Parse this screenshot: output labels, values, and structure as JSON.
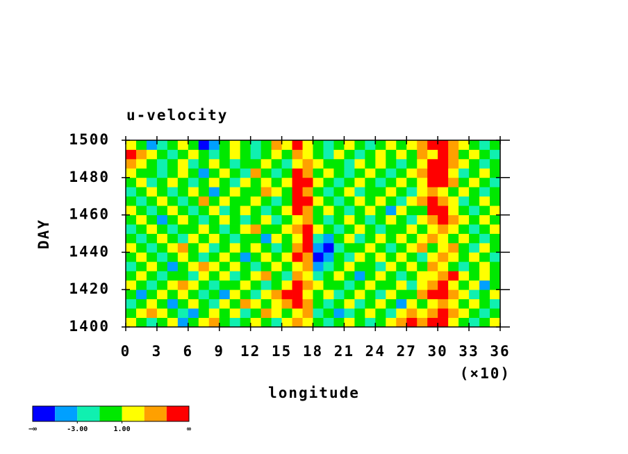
{
  "chart_data": {
    "type": "heatmap",
    "title": "u-velocity",
    "xlabel": "longitude",
    "ylabel": "DAY",
    "x_multiplier_label": "(×10)",
    "xlim": [
      0,
      36
    ],
    "xticks": [
      0,
      3,
      6,
      9,
      12,
      15,
      18,
      21,
      24,
      27,
      30,
      33,
      36
    ],
    "ylim": [
      1400,
      1500
    ],
    "yticks": [
      1400,
      1420,
      1440,
      1460,
      1480,
      1500
    ],
    "x": [
      0.5,
      1.5,
      2.5,
      3.5,
      4.5,
      5.5,
      6.5,
      7.5,
      8.5,
      9.5,
      10.5,
      11.5,
      12.5,
      13.5,
      14.5,
      15.5,
      16.5,
      17.5,
      18.5,
      19.5,
      20.5,
      21.5,
      22.5,
      23.5,
      24.5,
      25.5,
      26.5,
      27.5,
      28.5,
      29.5,
      30.5,
      31.5,
      32.5,
      33.5,
      34.5,
      35.5
    ],
    "y": [
      1402.5,
      1407.5,
      1412.5,
      1417.5,
      1422.5,
      1427.5,
      1432.5,
      1437.5,
      1442.5,
      1447.5,
      1452.5,
      1457.5,
      1462.5,
      1467.5,
      1472.5,
      1477.5,
      1482.5,
      1487.5,
      1492.5,
      1497.5
    ],
    "z": [
      [
        2,
        0,
        -2,
        0,
        2,
        -4,
        0,
        2,
        4,
        0,
        -2,
        0,
        2,
        0,
        -2,
        2,
        4,
        2,
        0,
        -2,
        0,
        2,
        0,
        -2,
        0,
        2,
        4,
        6,
        4,
        6,
        6,
        2,
        0,
        -2,
        0,
        2
      ],
      [
        0,
        2,
        4,
        2,
        0,
        -2,
        -4,
        0,
        2,
        0,
        2,
        -2,
        0,
        4,
        2,
        0,
        2,
        4,
        -2,
        0,
        -4,
        -2,
        0,
        2,
        0,
        -2,
        2,
        4,
        2,
        4,
        6,
        4,
        2,
        0,
        -2,
        0
      ],
      [
        -2,
        0,
        2,
        0,
        -4,
        0,
        2,
        0,
        -2,
        2,
        0,
        4,
        2,
        0,
        2,
        4,
        6,
        4,
        0,
        -2,
        0,
        2,
        -2,
        0,
        2,
        0,
        -4,
        2,
        0,
        2,
        4,
        2,
        0,
        2,
        0,
        -2
      ],
      [
        0,
        -4,
        0,
        2,
        0,
        2,
        0,
        -2,
        0,
        -4,
        2,
        0,
        -2,
        2,
        4,
        6,
        6,
        2,
        0,
        2,
        -2,
        0,
        2,
        0,
        -2,
        2,
        0,
        0,
        4,
        6,
        6,
        4,
        2,
        -2,
        0,
        2
      ],
      [
        2,
        0,
        -2,
        0,
        2,
        4,
        2,
        0,
        -2,
        0,
        0,
        2,
        0,
        -2,
        0,
        2,
        6,
        4,
        2,
        0,
        0,
        -2,
        0,
        2,
        0,
        0,
        2,
        -2,
        2,
        4,
        6,
        2,
        0,
        2,
        -4,
        0
      ],
      [
        0,
        2,
        0,
        -2,
        0,
        0,
        -2,
        2,
        0,
        2,
        -2,
        0,
        2,
        4,
        0,
        -2,
        4,
        2,
        -2,
        0,
        2,
        0,
        -4,
        0,
        2,
        0,
        -2,
        0,
        2,
        2,
        4,
        6,
        2,
        0,
        2,
        0
      ],
      [
        -2,
        0,
        2,
        0,
        -4,
        0,
        2,
        4,
        2,
        0,
        2,
        0,
        -2,
        0,
        2,
        0,
        2,
        4,
        -4,
        -2,
        0,
        2,
        0,
        0,
        -2,
        2,
        0,
        2,
        0,
        4,
        2,
        0,
        -2,
        0,
        2,
        0
      ],
      [
        0,
        2,
        0,
        -2,
        0,
        2,
        0,
        -2,
        0,
        2,
        0,
        -4,
        0,
        2,
        0,
        2,
        6,
        4,
        -6,
        -4,
        0,
        -2,
        2,
        0,
        2,
        0,
        2,
        0,
        -2,
        2,
        4,
        2,
        0,
        2,
        0,
        -2
      ],
      [
        2,
        0,
        -2,
        0,
        2,
        4,
        0,
        2,
        -2,
        0,
        2,
        0,
        2,
        0,
        -2,
        0,
        4,
        6,
        -4,
        -6,
        -2,
        0,
        0,
        2,
        0,
        -2,
        0,
        2,
        4,
        0,
        2,
        4,
        0,
        -2,
        2,
        0
      ],
      [
        0,
        -2,
        0,
        2,
        0,
        -2,
        2,
        0,
        2,
        0,
        -2,
        0,
        0,
        -4,
        2,
        0,
        2,
        6,
        -2,
        -4,
        0,
        2,
        -2,
        0,
        2,
        0,
        2,
        0,
        2,
        4,
        2,
        0,
        2,
        0,
        -2,
        0
      ],
      [
        -2,
        0,
        2,
        0,
        -2,
        0,
        0,
        2,
        0,
        -2,
        0,
        2,
        4,
        0,
        0,
        2,
        4,
        6,
        2,
        0,
        -2,
        0,
        2,
        0,
        -2,
        0,
        0,
        2,
        0,
        2,
        4,
        2,
        0,
        -2,
        0,
        2
      ],
      [
        0,
        2,
        0,
        -4,
        0,
        2,
        0,
        -2,
        0,
        2,
        0,
        -2,
        0,
        2,
        -2,
        0,
        2,
        4,
        0,
        -2,
        0,
        2,
        0,
        -2,
        0,
        2,
        0,
        -2,
        2,
        4,
        6,
        4,
        2,
        0,
        2,
        0
      ],
      [
        2,
        0,
        -2,
        0,
        2,
        0,
        -2,
        0,
        2,
        -2,
        0,
        2,
        0,
        -2,
        0,
        2,
        6,
        4,
        0,
        2,
        0,
        -2,
        0,
        2,
        0,
        -4,
        2,
        0,
        0,
        6,
        6,
        2,
        0,
        -2,
        0,
        2
      ],
      [
        0,
        -2,
        0,
        2,
        0,
        -2,
        0,
        4,
        0,
        2,
        0,
        0,
        2,
        0,
        -2,
        0,
        6,
        6,
        2,
        0,
        -2,
        0,
        2,
        0,
        2,
        0,
        -2,
        2,
        4,
        6,
        4,
        2,
        -2,
        0,
        2,
        0
      ],
      [
        -2,
        0,
        2,
        0,
        -2,
        0,
        2,
        0,
        -4,
        0,
        2,
        0,
        0,
        4,
        2,
        0,
        6,
        4,
        0,
        -2,
        0,
        2,
        -2,
        0,
        0,
        2,
        0,
        -2,
        2,
        4,
        2,
        0,
        2,
        0,
        -2,
        0
      ],
      [
        0,
        2,
        -2,
        0,
        2,
        0,
        -2,
        0,
        2,
        0,
        -2,
        2,
        0,
        2,
        0,
        2,
        6,
        6,
        2,
        0,
        -2,
        0,
        2,
        0,
        -2,
        0,
        2,
        0,
        2,
        6,
        6,
        4,
        0,
        2,
        0,
        -2
      ],
      [
        2,
        0,
        0,
        -2,
        0,
        2,
        0,
        -4,
        0,
        2,
        0,
        -2,
        4,
        0,
        -2,
        0,
        6,
        4,
        0,
        2,
        0,
        -2,
        0,
        2,
        0,
        -2,
        0,
        2,
        4,
        6,
        6,
        2,
        -2,
        0,
        2,
        0
      ],
      [
        4,
        2,
        0,
        -2,
        0,
        2,
        -2,
        0,
        2,
        0,
        -2,
        0,
        0,
        2,
        0,
        -2,
        2,
        4,
        2,
        0,
        0,
        -2,
        2,
        0,
        2,
        0,
        -2,
        0,
        2,
        6,
        6,
        4,
        2,
        0,
        -2,
        0
      ],
      [
        6,
        4,
        2,
        0,
        -2,
        0,
        2,
        0,
        -2,
        0,
        2,
        0,
        -2,
        0,
        2,
        0,
        4,
        2,
        0,
        -2,
        2,
        0,
        -2,
        0,
        2,
        0,
        2,
        0,
        4,
        2,
        6,
        4,
        0,
        2,
        0,
        -2
      ],
      [
        2,
        0,
        -4,
        -2,
        0,
        2,
        0,
        -6,
        -4,
        0,
        2,
        0,
        -2,
        0,
        4,
        2,
        6,
        2,
        0,
        -2,
        0,
        2,
        0,
        -2,
        0,
        2,
        0,
        2,
        4,
        6,
        6,
        4,
        2,
        0,
        -2,
        0
      ]
    ],
    "colorbar": {
      "levels": [
        -5,
        -3,
        -1,
        1,
        3,
        5
      ],
      "colors": [
        "#0000ff",
        "#00a0ff",
        "#10f0b0",
        "#00e800",
        "#ffff00",
        "#ffa000",
        "#ff0000"
      ],
      "low_label": "−∞",
      "high_label": "∞",
      "labels": [
        {
          "value": -3,
          "label": "-3.00"
        },
        {
          "value": 1,
          "label": "1.00"
        }
      ]
    }
  }
}
